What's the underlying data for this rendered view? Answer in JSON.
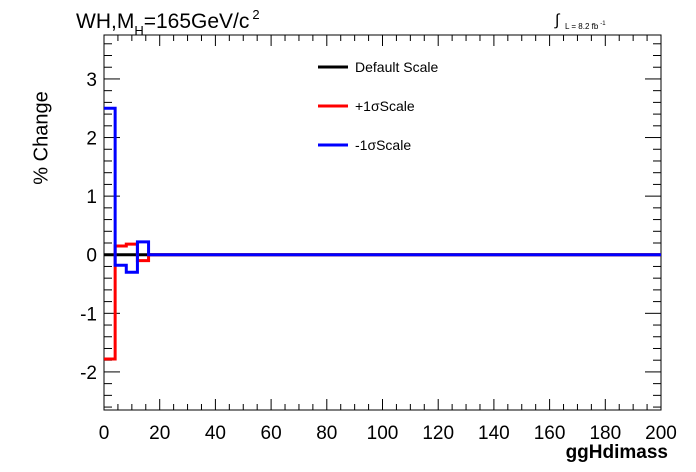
{
  "title": {
    "prefix": "WH,M",
    "subscript": "H",
    "suffix": "=165GeV/c",
    "superscript": "2"
  },
  "luminosity": {
    "integral_symbol": "∫",
    "text": "L = 8.2 fb",
    "superscript": "-1"
  },
  "chart_data": {
    "type": "line",
    "style": "step histogram",
    "xlabel": "ggHdimass",
    "ylabel": "% Change",
    "xlim": [
      0,
      200
    ],
    "ylim": [
      -2.65,
      3.75
    ],
    "x_ticks": [
      0,
      20,
      40,
      60,
      80,
      100,
      120,
      140,
      160,
      180,
      200
    ],
    "y_ticks": [
      -2,
      -1,
      0,
      1,
      2,
      3
    ],
    "grid": false,
    "legend_position": "top-center",
    "bin_edges": [
      0,
      4,
      8,
      12,
      16,
      20,
      200
    ],
    "series": [
      {
        "name": "Default Scale",
        "color": "#000000",
        "values": [
          0,
          0,
          0,
          0,
          0,
          0
        ]
      },
      {
        "name": "+1σScale",
        "color": "#ff0000",
        "values": [
          -1.78,
          0.15,
          0.18,
          -0.1,
          0,
          0
        ]
      },
      {
        "name": "-1σScale",
        "color": "#0000ff",
        "values": [
          2.5,
          -0.18,
          -0.3,
          0.22,
          0,
          0
        ]
      }
    ]
  }
}
